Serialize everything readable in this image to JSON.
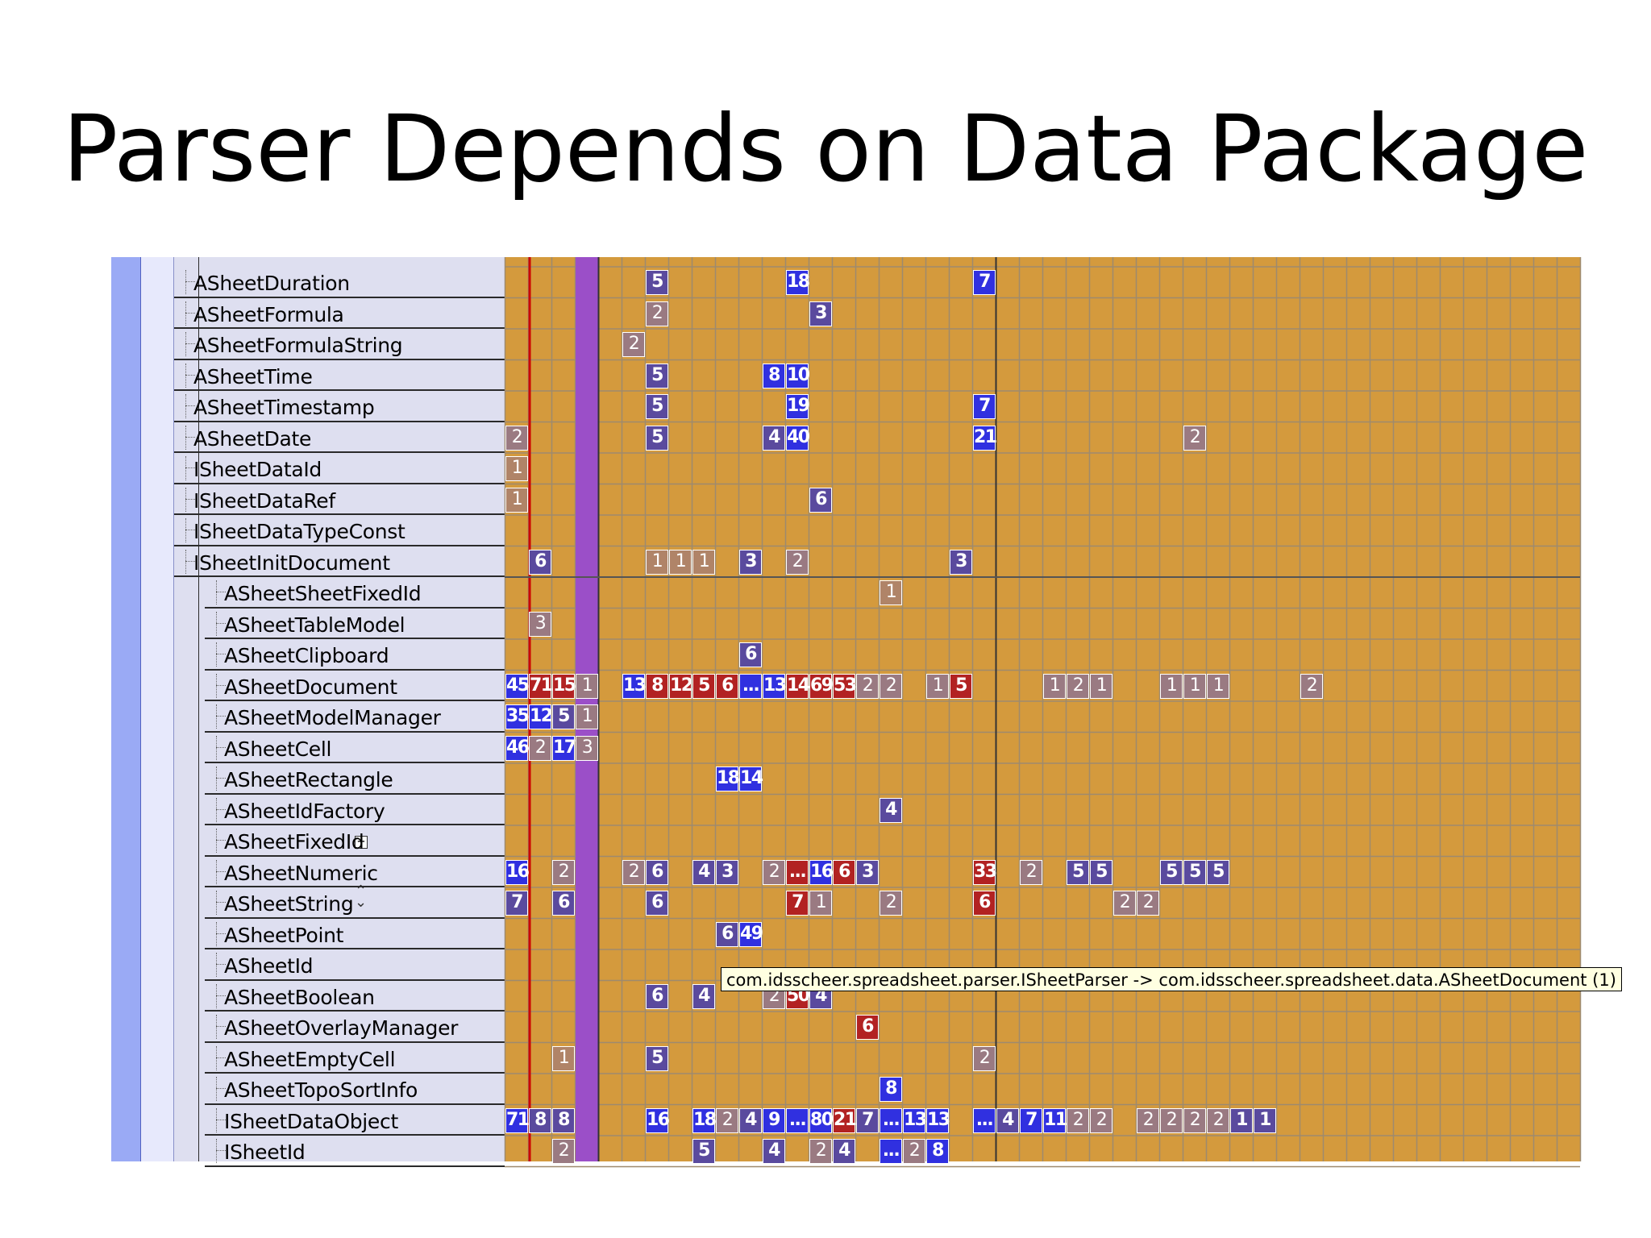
{
  "slide": {
    "title": "Parser Depends on Data Package"
  },
  "tooltip": {
    "text": "com.idsscheer.spreadsheet.parser.ISheetParser -> com.idsscheer.spreadsheet.data.ASheetDocument (1)"
  },
  "colors": {
    "grid_background": "#d49a3d",
    "grid_lines": "#9e8a6e",
    "dependency_strong": "#3030e0",
    "dependency_medium": "#5a4a9e",
    "dependency_cycle": "#b22222",
    "dependency_weak": "#9a7a82",
    "highlight_column": "#9b4fc8",
    "selected_column_line": "#cc0000",
    "tree_background": "#dedff0",
    "sidebar_blue": "#9aaaf5"
  },
  "rows": [
    {
      "label": "ASheetDuration",
      "level": 0
    },
    {
      "label": "ASheetFormula",
      "level": 0
    },
    {
      "label": "ASheetFormulaString",
      "level": 0
    },
    {
      "label": "ASheetTime",
      "level": 0
    },
    {
      "label": "ASheetTimestamp",
      "level": 0
    },
    {
      "label": "ASheetDate",
      "level": 0
    },
    {
      "label": "ISheetDataId",
      "level": 0
    },
    {
      "label": "ISheetDataRef",
      "level": 0
    },
    {
      "label": "ISheetDataTypeConst",
      "level": 0
    },
    {
      "label": "ISheetInitDocument",
      "level": 0
    },
    {
      "label": "ASheetSheetFixedId",
      "level": 1
    },
    {
      "label": "ASheetTableModel",
      "level": 1
    },
    {
      "label": "ASheetClipboard",
      "level": 1
    },
    {
      "label": "ASheetDocument",
      "level": 1
    },
    {
      "label": "ASheetModelManager",
      "level": 1
    },
    {
      "label": "ASheetCell",
      "level": 1
    },
    {
      "label": "ASheetRectangle",
      "level": 1
    },
    {
      "label": "ASheetIdFactory",
      "level": 1
    },
    {
      "label": "ASheetFixedId",
      "level": 1
    },
    {
      "label": "ASheetNumeric",
      "level": 1
    },
    {
      "label": "ASheetString",
      "level": 1
    },
    {
      "label": "ASheetPoint",
      "level": 1
    },
    {
      "label": "ASheetId",
      "level": 1
    },
    {
      "label": "ASheetBoolean",
      "level": 1
    },
    {
      "label": "ASheetOverlayManager",
      "level": 1
    },
    {
      "label": "ASheetEmptyCell",
      "level": 1
    },
    {
      "label": "ASheetTopoSortInfo",
      "level": 1
    },
    {
      "label": "ISheetDataObject",
      "level": 1
    },
    {
      "label": "ISheetId",
      "level": 1
    }
  ],
  "cells": [
    [
      0,
      6,
      "5",
      "purple"
    ],
    [
      0,
      12,
      "18",
      "blue"
    ],
    [
      0,
      20,
      "7",
      "blue"
    ],
    [
      1,
      6,
      "2",
      "mauve"
    ],
    [
      1,
      13,
      "3",
      "purple"
    ],
    [
      2,
      5,
      "2",
      "mauve"
    ],
    [
      3,
      6,
      "5",
      "purple"
    ],
    [
      3,
      11,
      "8",
      "blue"
    ],
    [
      3,
      12,
      "10",
      "blue"
    ],
    [
      4,
      6,
      "5",
      "purple"
    ],
    [
      4,
      12,
      "19",
      "blue"
    ],
    [
      4,
      20,
      "7",
      "blue"
    ],
    [
      5,
      0,
      "2",
      "mauve"
    ],
    [
      5,
      6,
      "5",
      "purple"
    ],
    [
      5,
      11,
      "4",
      "purple"
    ],
    [
      5,
      12,
      "40",
      "blue"
    ],
    [
      5,
      20,
      "21",
      "blue"
    ],
    [
      5,
      29,
      "2",
      "mauve"
    ],
    [
      6,
      0,
      "1",
      "dim"
    ],
    [
      7,
      0,
      "1",
      "dim"
    ],
    [
      7,
      13,
      "6",
      "purple"
    ],
    [
      9,
      1,
      "6",
      "purple"
    ],
    [
      9,
      6,
      "1",
      "dim"
    ],
    [
      9,
      7,
      "1",
      "dim"
    ],
    [
      9,
      8,
      "1",
      "dim"
    ],
    [
      9,
      10,
      "3",
      "purple"
    ],
    [
      9,
      12,
      "2",
      "mauve"
    ],
    [
      9,
      19,
      "3",
      "purple"
    ],
    [
      10,
      16,
      "1",
      "dim"
    ],
    [
      11,
      1,
      "3",
      "mauve"
    ],
    [
      12,
      10,
      "6",
      "purple"
    ],
    [
      13,
      0,
      "45",
      "blue"
    ],
    [
      13,
      1,
      "71",
      "red"
    ],
    [
      13,
      2,
      "15",
      "red"
    ],
    [
      13,
      3,
      "1",
      "mauve"
    ],
    [
      13,
      5,
      "13",
      "blue"
    ],
    [
      13,
      6,
      "8",
      "red"
    ],
    [
      13,
      7,
      "12",
      "red"
    ],
    [
      13,
      8,
      "5",
      "red"
    ],
    [
      13,
      9,
      "6",
      "red"
    ],
    [
      13,
      10,
      "...",
      "blue"
    ],
    [
      13,
      11,
      "13",
      "blue"
    ],
    [
      13,
      12,
      "14",
      "red"
    ],
    [
      13,
      13,
      "69",
      "red"
    ],
    [
      13,
      14,
      "53",
      "red"
    ],
    [
      13,
      15,
      "2",
      "mauve"
    ],
    [
      13,
      16,
      "2",
      "mauve"
    ],
    [
      13,
      18,
      "1",
      "mauve"
    ],
    [
      13,
      19,
      "5",
      "red"
    ],
    [
      13,
      23,
      "1",
      "mauve"
    ],
    [
      13,
      24,
      "2",
      "mauve"
    ],
    [
      13,
      25,
      "1",
      "mauve"
    ],
    [
      13,
      28,
      "1",
      "mauve"
    ],
    [
      13,
      29,
      "1",
      "mauve"
    ],
    [
      13,
      30,
      "1",
      "mauve"
    ],
    [
      13,
      34,
      "2",
      "mauve"
    ],
    [
      14,
      0,
      "35",
      "blue"
    ],
    [
      14,
      1,
      "12",
      "blue"
    ],
    [
      14,
      2,
      "5",
      "purple"
    ],
    [
      14,
      3,
      "1",
      "mauve"
    ],
    [
      15,
      0,
      "46",
      "blue"
    ],
    [
      15,
      1,
      "2",
      "mauve"
    ],
    [
      15,
      2,
      "17",
      "blue"
    ],
    [
      15,
      3,
      "3",
      "mauve"
    ],
    [
      16,
      9,
      "18",
      "blue"
    ],
    [
      16,
      10,
      "14",
      "blue"
    ],
    [
      17,
      16,
      "4",
      "purple"
    ],
    [
      19,
      0,
      "16",
      "blue"
    ],
    [
      19,
      2,
      "2",
      "mauve"
    ],
    [
      19,
      5,
      "2",
      "mauve"
    ],
    [
      19,
      6,
      "6",
      "purple"
    ],
    [
      19,
      8,
      "4",
      "purple"
    ],
    [
      19,
      9,
      "3",
      "purple"
    ],
    [
      19,
      11,
      "2",
      "mauve"
    ],
    [
      19,
      12,
      "...",
      "red"
    ],
    [
      19,
      13,
      "16",
      "blue"
    ],
    [
      19,
      14,
      "6",
      "red"
    ],
    [
      19,
      15,
      "3",
      "purple"
    ],
    [
      19,
      20,
      "33",
      "red"
    ],
    [
      19,
      22,
      "2",
      "mauve"
    ],
    [
      19,
      24,
      "5",
      "purple"
    ],
    [
      19,
      25,
      "5",
      "purple"
    ],
    [
      19,
      28,
      "5",
      "purple"
    ],
    [
      19,
      29,
      "5",
      "purple"
    ],
    [
      19,
      30,
      "5",
      "purple"
    ],
    [
      20,
      0,
      "7",
      "purple"
    ],
    [
      20,
      2,
      "6",
      "purple"
    ],
    [
      20,
      6,
      "6",
      "purple"
    ],
    [
      20,
      12,
      "7",
      "red"
    ],
    [
      20,
      13,
      "1",
      "mauve"
    ],
    [
      20,
      16,
      "2",
      "mauve"
    ],
    [
      20,
      20,
      "6",
      "red"
    ],
    [
      20,
      26,
      "2",
      "mauve"
    ],
    [
      20,
      27,
      "2",
      "mauve"
    ],
    [
      21,
      9,
      "6",
      "purple"
    ],
    [
      21,
      10,
      "49",
      "blue"
    ],
    [
      23,
      6,
      "6",
      "purple"
    ],
    [
      23,
      8,
      "4",
      "purple"
    ],
    [
      23,
      11,
      "2",
      "mauve"
    ],
    [
      23,
      12,
      "50",
      "red"
    ],
    [
      23,
      13,
      "4",
      "purple"
    ],
    [
      24,
      15,
      "6",
      "red"
    ],
    [
      25,
      2,
      "1",
      "dim"
    ],
    [
      25,
      6,
      "5",
      "purple"
    ],
    [
      25,
      20,
      "2",
      "mauve"
    ],
    [
      26,
      16,
      "8",
      "blue"
    ],
    [
      27,
      0,
      "71",
      "blue"
    ],
    [
      27,
      1,
      "8",
      "purple"
    ],
    [
      27,
      2,
      "8",
      "purple"
    ],
    [
      27,
      6,
      "16",
      "blue"
    ],
    [
      27,
      8,
      "18",
      "blue"
    ],
    [
      27,
      9,
      "2",
      "mauve"
    ],
    [
      27,
      10,
      "4",
      "purple"
    ],
    [
      27,
      11,
      "9",
      "blue"
    ],
    [
      27,
      12,
      "...",
      "blue"
    ],
    [
      27,
      13,
      "80",
      "blue"
    ],
    [
      27,
      14,
      "21",
      "red"
    ],
    [
      27,
      15,
      "7",
      "purple"
    ],
    [
      27,
      16,
      "...",
      "blue"
    ],
    [
      27,
      17,
      "13",
      "blue"
    ],
    [
      27,
      18,
      "13",
      "blue"
    ],
    [
      27,
      20,
      "...",
      "blue"
    ],
    [
      27,
      21,
      "4",
      "purple"
    ],
    [
      27,
      22,
      "7",
      "blue"
    ],
    [
      27,
      23,
      "11",
      "blue"
    ],
    [
      27,
      24,
      "2",
      "mauve"
    ],
    [
      27,
      25,
      "2",
      "mauve"
    ],
    [
      27,
      27,
      "2",
      "mauve"
    ],
    [
      27,
      28,
      "2",
      "mauve"
    ],
    [
      27,
      29,
      "2",
      "mauve"
    ],
    [
      27,
      30,
      "2",
      "mauve"
    ],
    [
      27,
      31,
      "1",
      "purple"
    ],
    [
      27,
      32,
      "1",
      "purple"
    ],
    [
      28,
      2,
      "2",
      "mauve"
    ],
    [
      28,
      8,
      "5",
      "purple"
    ],
    [
      28,
      11,
      "4",
      "purple"
    ],
    [
      28,
      13,
      "2",
      "mauve"
    ],
    [
      28,
      14,
      "4",
      "purple"
    ],
    [
      28,
      16,
      "...",
      "blue"
    ],
    [
      28,
      17,
      "2",
      "mauve"
    ],
    [
      28,
      18,
      "8",
      "blue"
    ]
  ]
}
